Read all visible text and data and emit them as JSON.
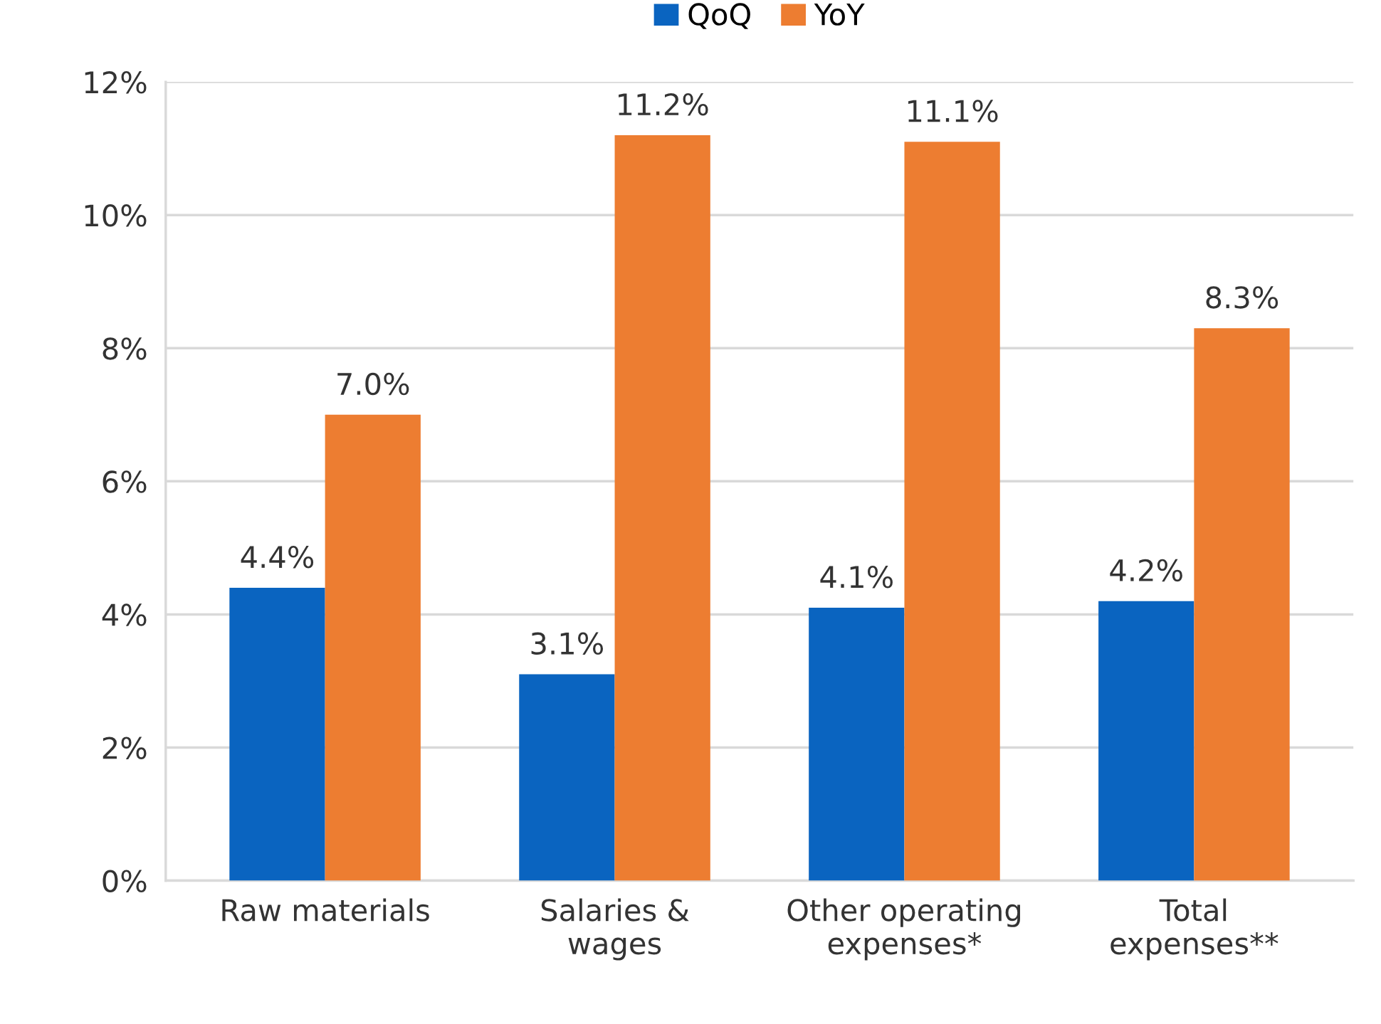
{
  "chart_data": {
    "type": "bar",
    "categories": [
      "Raw materials",
      "Salaries &\nwages",
      "Other operating\nexpenses*",
      "Total\nexpenses**"
    ],
    "series": [
      {
        "name": "QoQ",
        "color": "#0a64c0",
        "values": [
          4.4,
          3.1,
          4.1,
          4.2
        ],
        "value_labels": [
          "4.4%",
          "3.1%",
          "4.1%",
          "4.2%"
        ]
      },
      {
        "name": "YoY",
        "color": "#ed7d31",
        "values": [
          7.0,
          11.2,
          11.1,
          8.3
        ],
        "value_labels": [
          "7.0%",
          "11.2%",
          "11.1%",
          "8.3%"
        ]
      }
    ],
    "ylim": [
      0,
      12
    ],
    "yticks": [
      {
        "value": 0,
        "label": "0%"
      },
      {
        "value": 2,
        "label": "2%"
      },
      {
        "value": 4,
        "label": "4%"
      },
      {
        "value": 6,
        "label": "6%"
      },
      {
        "value": 8,
        "label": "8%"
      },
      {
        "value": 10,
        "label": "10%"
      },
      {
        "value": 12,
        "label": "12%"
      }
    ],
    "grid": "y",
    "legend": "top"
  }
}
